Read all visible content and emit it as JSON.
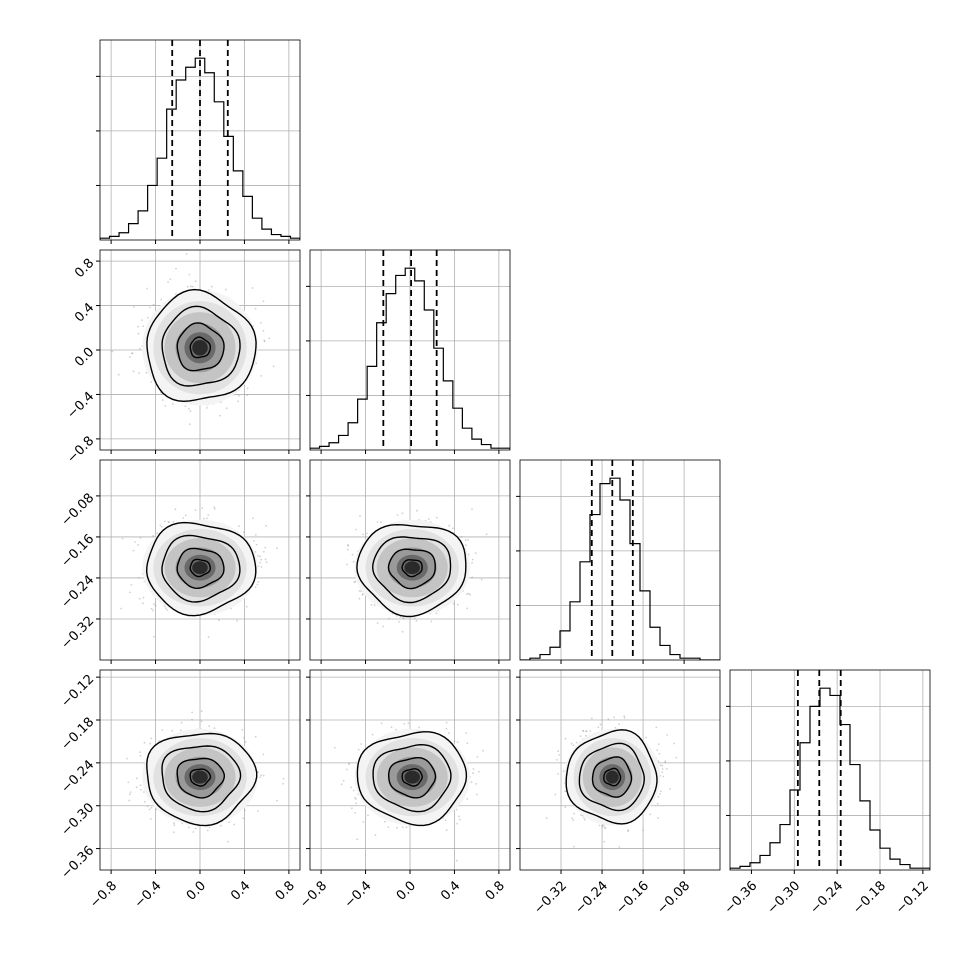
{
  "chart_data": {
    "type": "corner",
    "parameters": [
      {
        "id": "p0",
        "range": [
          -0.9,
          0.9
        ],
        "ticks": [
          -0.8,
          -0.4,
          0.0,
          0.4,
          0.8
        ],
        "tick_labels": [
          "−0.8",
          "−0.4",
          "0.0",
          "0.4",
          "0.8"
        ],
        "mean": 0.0,
        "sd": 0.2,
        "quantiles": [
          -0.25,
          0.0,
          0.25
        ]
      },
      {
        "id": "p1",
        "range": [
          -0.9,
          0.9
        ],
        "ticks": [
          -0.8,
          -0.4,
          0.0,
          0.4,
          0.8
        ],
        "tick_labels": [
          "−0.8",
          "−0.4",
          "0.0",
          "0.4",
          "0.8"
        ],
        "mean": 0.02,
        "sd": 0.2,
        "quantiles": [
          -0.24,
          0.01,
          0.24
        ]
      },
      {
        "id": "p2",
        "range": [
          -0.4,
          -0.01
        ],
        "ticks": [
          -0.32,
          -0.24,
          -0.16,
          -0.08
        ],
        "tick_labels": [
          "−0.32",
          "−0.24",
          "−0.16",
          "−0.08"
        ],
        "mean": -0.22,
        "sd": 0.036,
        "quantiles": [
          -0.26,
          -0.22,
          -0.18
        ]
      },
      {
        "id": "p3",
        "range": [
          -0.39,
          -0.11
        ],
        "ticks": [
          -0.36,
          -0.3,
          -0.24,
          -0.18,
          -0.12
        ],
        "tick_labels": [
          "−0.36",
          "−0.30",
          "−0.24",
          "−0.18",
          "−0.12"
        ],
        "mean": -0.26,
        "sd": 0.026,
        "quantiles": [
          -0.295,
          -0.265,
          -0.235
        ]
      }
    ],
    "histograms": [
      {
        "param": "p0",
        "counts": [
          1,
          2,
          4,
          9,
          16,
          30,
          45,
          72,
          88,
          95,
          100,
          92,
          76,
          57,
          38,
          24,
          12,
          6,
          3,
          2,
          1
        ]
      },
      {
        "param": "p1",
        "counts": [
          1,
          2,
          4,
          8,
          15,
          28,
          46,
          70,
          86,
          96,
          100,
          93,
          77,
          56,
          38,
          23,
          12,
          6,
          3,
          1,
          1
        ]
      },
      {
        "param": "p2",
        "counts": [
          0,
          1,
          3,
          7,
          16,
          32,
          54,
          80,
          97,
          100,
          88,
          64,
          38,
          18,
          8,
          3,
          1,
          1,
          0,
          0
        ]
      },
      {
        "param": "p3",
        "counts": [
          1,
          2,
          4,
          8,
          15,
          25,
          44,
          70,
          90,
          100,
          96,
          80,
          58,
          38,
          22,
          12,
          6,
          3,
          1,
          1
        ]
      }
    ],
    "grid": true,
    "quantile_lines": "dashed",
    "contours": true,
    "scatter_points": true
  }
}
